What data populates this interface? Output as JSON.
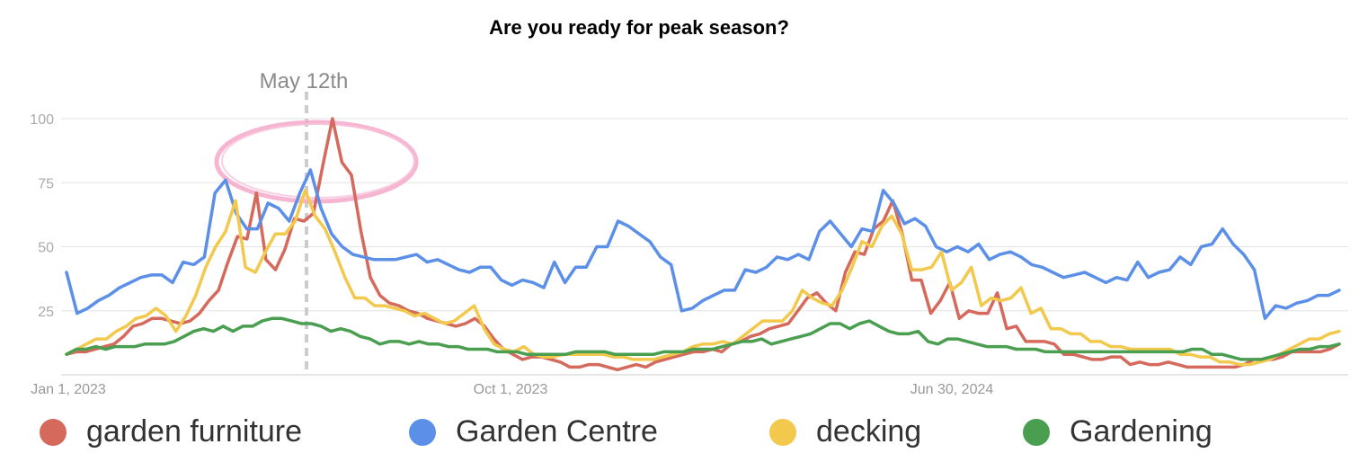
{
  "chart_data": {
    "type": "line",
    "title": "Are you ready for peak season?",
    "xlabel": "",
    "ylabel": "",
    "ylim": [
      0,
      100
    ],
    "yticks": [
      25,
      50,
      75,
      100
    ],
    "grid": true,
    "legend_position": "bottom",
    "x_start": "Jan 1, 2023",
    "x_tick_labels": [
      "Jan 1, 2023",
      "Oct 1, 2023",
      "Jun 30, 2024"
    ],
    "annotation": {
      "label": "May 12th",
      "style": "dashed vertical line with pink circle around peak"
    },
    "series": [
      {
        "name": "garden furniture",
        "color": "#d4695c",
        "values": [
          8,
          9,
          9,
          10,
          11,
          12,
          15,
          19,
          20,
          22,
          22,
          21,
          20,
          21,
          24,
          29,
          33,
          44,
          54,
          53,
          71,
          45,
          41,
          49,
          61,
          60,
          63,
          82,
          100,
          83,
          78,
          56,
          38,
          31,
          28,
          27,
          25,
          24,
          22,
          21,
          20,
          19,
          20,
          22,
          19,
          14,
          10,
          8,
          6,
          7,
          7,
          6,
          5,
          3,
          3,
          4,
          4,
          3,
          2,
          3,
          4,
          3,
          5,
          6,
          7,
          8,
          9,
          9,
          10,
          9,
          12,
          13,
          15,
          16,
          18,
          19,
          20,
          25,
          30,
          32,
          28,
          25,
          40,
          48,
          47,
          57,
          60,
          68,
          55,
          37,
          37,
          24,
          29,
          36,
          22,
          25,
          24,
          24,
          32,
          18,
          19,
          13,
          13,
          13,
          12,
          8,
          8,
          7,
          6,
          6,
          7,
          7,
          4,
          5,
          4,
          4,
          5,
          4,
          3,
          3,
          3,
          3,
          3,
          3,
          4,
          6,
          6,
          6,
          7,
          9,
          9,
          9,
          9,
          10,
          12
        ]
      },
      {
        "name": "Garden Centre",
        "color": "#5b8fe8",
        "values": [
          40,
          24,
          26,
          29,
          31,
          34,
          36,
          38,
          39,
          39,
          36,
          44,
          43,
          46,
          71,
          76,
          63,
          57,
          57,
          67,
          65,
          60,
          71,
          80,
          65,
          55,
          50,
          47,
          46,
          45,
          45,
          45,
          46,
          47,
          44,
          45,
          43,
          41,
          40,
          42,
          42,
          37,
          35,
          37,
          36,
          34,
          44,
          36,
          42,
          42,
          50,
          50,
          60,
          58,
          55,
          52,
          46,
          43,
          25,
          26,
          29,
          31,
          33,
          33,
          41,
          40,
          42,
          46,
          45,
          47,
          45,
          56,
          60,
          55,
          50,
          57,
          56,
          72,
          67,
          59,
          61,
          58,
          50,
          48,
          50,
          48,
          51,
          45,
          47,
          48,
          46,
          43,
          42,
          40,
          38,
          39,
          40,
          38,
          36,
          38,
          37,
          44,
          38,
          40,
          41,
          46,
          43,
          50,
          51,
          57,
          51,
          47,
          41,
          22,
          27,
          26,
          28,
          29,
          31,
          31,
          33
        ]
      },
      {
        "name": "decking",
        "color": "#f2c94c",
        "values": [
          8,
          10,
          12,
          14,
          14,
          17,
          19,
          22,
          23,
          26,
          23,
          17,
          23,
          31,
          42,
          50,
          56,
          68,
          42,
          40,
          48,
          55,
          55,
          60,
          72,
          62,
          57,
          48,
          38,
          30,
          30,
          27,
          27,
          26,
          25,
          23,
          24,
          22,
          20,
          21,
          24,
          27,
          18,
          12,
          10,
          9,
          11,
          8,
          7,
          7,
          8,
          8,
          8,
          8,
          8,
          7,
          7,
          6,
          6,
          6,
          7,
          8,
          9,
          11,
          12,
          12,
          13,
          12,
          15,
          18,
          21,
          21,
          21,
          25,
          33,
          30,
          28,
          27,
          33,
          42,
          52,
          50,
          58,
          62,
          55,
          41,
          41,
          42,
          48,
          33,
          36,
          42,
          27,
          30,
          29,
          30,
          34,
          24,
          26,
          18,
          18,
          16,
          16,
          13,
          13,
          11,
          11,
          10,
          10,
          10,
          10,
          10,
          8,
          8,
          7,
          7,
          5,
          5,
          4,
          4,
          5,
          6,
          8,
          10,
          12,
          14,
          14,
          16,
          17
        ]
      },
      {
        "name": "Gardening",
        "color": "#4a9e50",
        "values": [
          8,
          10,
          10,
          11,
          10,
          11,
          11,
          11,
          12,
          12,
          12,
          13,
          15,
          17,
          18,
          17,
          19,
          17,
          19,
          19,
          21,
          22,
          22,
          21,
          20,
          20,
          19,
          17,
          18,
          17,
          15,
          14,
          12,
          13,
          13,
          12,
          13,
          12,
          12,
          11,
          11,
          10,
          10,
          10,
          9,
          9,
          9,
          8,
          8,
          8,
          8,
          8,
          9,
          9,
          9,
          9,
          8,
          8,
          8,
          8,
          8,
          9,
          9,
          9,
          10,
          10,
          10,
          11,
          12,
          13,
          13,
          14,
          12,
          13,
          14,
          15,
          16,
          18,
          20,
          20,
          18,
          20,
          21,
          19,
          17,
          16,
          16,
          17,
          13,
          12,
          14,
          14,
          13,
          12,
          11,
          11,
          11,
          10,
          10,
          10,
          9,
          9,
          9,
          9,
          9,
          9,
          9,
          9,
          9,
          9,
          9,
          9,
          9,
          9,
          9,
          10,
          10,
          8,
          8,
          7,
          6,
          6,
          6,
          7,
          8,
          9,
          10,
          10,
          11,
          11,
          12
        ]
      }
    ]
  }
}
